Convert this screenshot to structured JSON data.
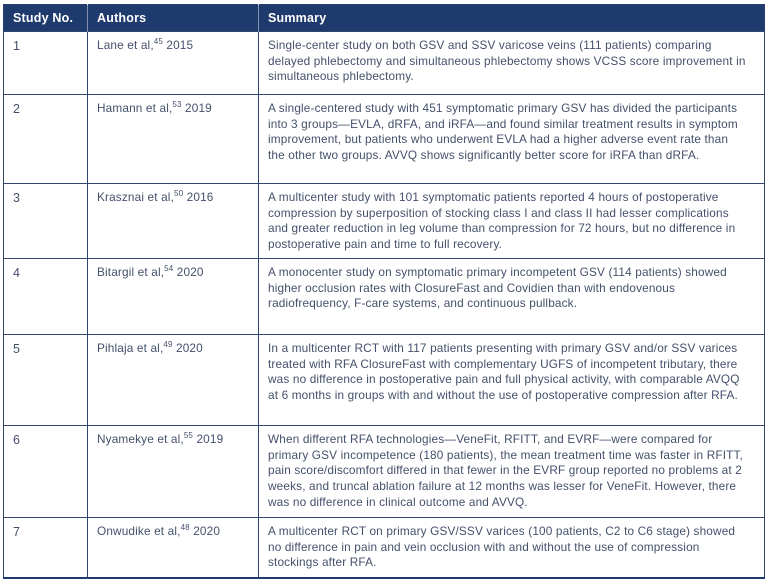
{
  "colors": {
    "header_bg": "#1f3a6d",
    "border": "#31456f",
    "body_text": "#44506b",
    "header_text": "#ffffff"
  },
  "table": {
    "columns": [
      {
        "label": "Study No."
      },
      {
        "label": "Authors"
      },
      {
        "label": "Summary"
      }
    ],
    "rows": [
      {
        "no": "1",
        "authors": "Lane et al,",
        "ref": "45",
        "year": "2015",
        "summary": "Single-center study on both GSV and SSV varicose veins (111 patients) comparing delayed phlebectomy and simultaneous phlebectomy shows VCSS score improvement in simultaneous phlebectomy."
      },
      {
        "no": "2",
        "authors": "Hamann et al,",
        "ref": "53",
        "year": "2019",
        "summary": "A single-centered study with 451 symptomatic primary GSV has divided the participants into 3 groups—EVLA, dRFA, and iRFA—and found similar treatment results in symptom improvement, but patients who underwent EVLA had a higher adverse event rate than the other two groups. AVVQ shows significantly better score for iRFA than dRFA."
      },
      {
        "no": "3",
        "authors": "Krasznai et al,",
        "ref": "50",
        "year": "2016",
        "summary": "A multicenter study with 101 symptomatic patients reported 4 hours of postoperative compression by superposition of stocking class I and class II had lesser complications and greater reduction in leg volume than compression for 72 hours, but no difference in postoperative pain and time to full recovery."
      },
      {
        "no": "4",
        "authors": "Bitargil et al,",
        "ref": "54",
        "year": "2020",
        "summary": "A monocenter study on symptomatic primary incompetent GSV (114 patients) showed higher occlusion rates with ClosureFast and Covidien than with endovenous radiofrequency, F-care systems, and continuous pullback."
      },
      {
        "no": "5",
        "authors": "Pihlaja et al,",
        "ref": "49",
        "year": "2020",
        "summary": "In a multicenter RCT with 117 patients presenting with primary GSV and/or SSV varices treated with RFA ClosureFast with complementary UGFS of incompetent tributary, there was no difference in postoperative pain and full physical activity, with comparable AVQQ at 6 months in groups with and without the use of postoperative compression after RFA."
      },
      {
        "no": "6",
        "authors": "Nyamekye et al,",
        "ref": "55",
        "year": "2019",
        "summary": "When different RFA technologies—VeneFit, RFITT, and EVRF—were compared for primary GSV incompetence (180 patients), the mean treatment time was faster in RFITT, pain score/discomfort differed in that fewer in the EVRF group reported no problems at 2 weeks, and truncal ablation failure at 12 months was lesser for VeneFit. However, there was no difference in clinical outcome and AVVQ."
      },
      {
        "no": "7",
        "authors": "Onwudike et al,",
        "ref": "48",
        "year": "2020",
        "summary": "A multicenter RCT on primary GSV/SSV varices (100 patients, C2 to C6 stage) showed no difference in pain and vein occlusion with and without the use of compression stockings after RFA."
      }
    ]
  }
}
